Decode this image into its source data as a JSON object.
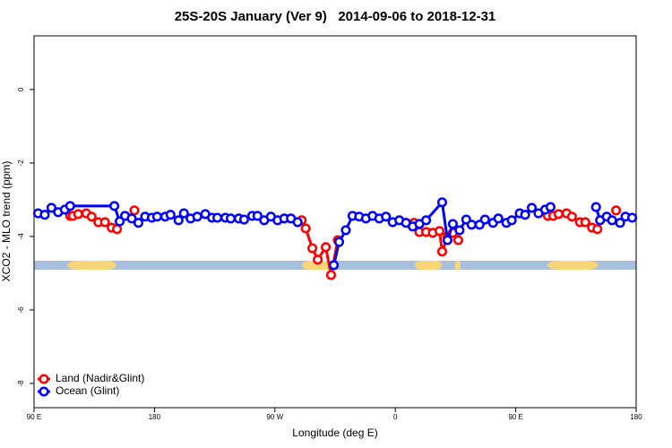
{
  "chart_data": {
    "type": "line",
    "title": "25S-20S January (Ver 9)   2014-09-06 to 2018-12-31",
    "xlabel": "Longitude (deg E)",
    "ylabel": "XCO2 - MLO trend (ppm)",
    "xlim": [
      90,
      540
    ],
    "xticks": [
      {
        "value": 90,
        "label": "90 E"
      },
      180,
      {
        "value": 270,
        "label": "90 W"
      },
      {
        "value": 360,
        "label": "0"
      },
      {
        "value": 450,
        "label": "90 E"
      },
      {
        "value": 540,
        "label": "180"
      }
    ],
    "ylim": [
      -8.66,
      1.46
    ],
    "yticks": [
      0,
      -2,
      -4,
      -6,
      -8
    ],
    "legend": "bottom-left",
    "series": [
      {
        "name": "Land (Nadir&Glint)",
        "color": "#ff0000",
        "x": [
          117,
          119,
          123,
          129,
          133,
          138,
          143,
          148,
          152,
          155,
          165,
          250,
          290,
          293,
          298,
          302,
          308,
          312,
          317,
          390,
          374,
          378,
          383,
          388,
          393,
          395,
          399,
          403,
          407,
          460,
          474,
          478,
          482,
          488,
          492,
          498,
          502,
          507,
          511,
          514,
          525
        ],
        "values": [
          -3.44,
          -3.44,
          -3.39,
          -3.37,
          -3.46,
          -3.61,
          -3.61,
          -3.76,
          -3.8,
          null,
          -3.29,
          null,
          -3.56,
          -3.78,
          -4.32,
          -4.63,
          -4.29,
          -5.05,
          -4.1,
          null,
          -3.63,
          -3.88,
          -3.88,
          -3.9,
          -3.85,
          -4.41,
          -4.0,
          -3.9,
          -4.1,
          null,
          -3.44,
          -3.44,
          -3.39,
          -3.37,
          -3.46,
          -3.61,
          -3.61,
          -3.76,
          -3.8,
          null,
          -3.29
        ]
      },
      {
        "name": "Ocean (Glint)",
        "color": "#0000ff",
        "x": [
          93,
          98,
          103,
          108,
          113,
          117,
          150,
          154,
          158,
          163,
          168,
          173,
          178,
          182,
          188,
          192,
          198,
          202,
          207,
          212,
          218,
          223,
          227,
          233,
          237,
          243,
          247,
          253,
          257,
          262,
          267,
          272,
          277,
          282,
          287,
          300,
          314,
          318,
          323,
          328,
          333,
          338,
          343,
          348,
          353,
          358,
          363,
          368,
          373,
          378,
          383,
          395,
          399,
          403,
          408,
          413,
          417,
          423,
          427,
          433,
          437,
          443,
          447,
          453,
          457,
          462,
          467,
          472,
          476,
          493,
          510,
          513,
          518,
          522,
          528,
          532,
          537
        ],
        "values": [
          -3.37,
          -3.41,
          -3.22,
          -3.34,
          -3.27,
          -3.17,
          -3.17,
          -3.59,
          -3.44,
          -3.51,
          -3.63,
          -3.46,
          -3.49,
          -3.46,
          -3.46,
          -3.41,
          -3.56,
          -3.37,
          -3.51,
          -3.46,
          -3.39,
          -3.49,
          -3.49,
          -3.49,
          -3.51,
          -3.51,
          -3.54,
          -3.44,
          -3.44,
          -3.56,
          -3.46,
          -3.56,
          -3.51,
          -3.51,
          -3.61,
          null,
          -4.78,
          -4.15,
          -3.83,
          -3.44,
          -3.46,
          -3.51,
          -3.44,
          -3.51,
          -3.46,
          -3.61,
          -3.56,
          -3.63,
          -3.73,
          -3.66,
          -3.56,
          -3.07,
          -4.1,
          -3.66,
          -3.83,
          -3.54,
          -3.68,
          -3.68,
          -3.54,
          -3.63,
          -3.51,
          -3.63,
          -3.56,
          -3.37,
          -3.41,
          -3.22,
          -3.37,
          -3.27,
          -3.2,
          null,
          -3.2,
          -3.56,
          -3.46,
          -3.56,
          -3.63,
          -3.46,
          -3.49
        ]
      }
    ]
  }
}
